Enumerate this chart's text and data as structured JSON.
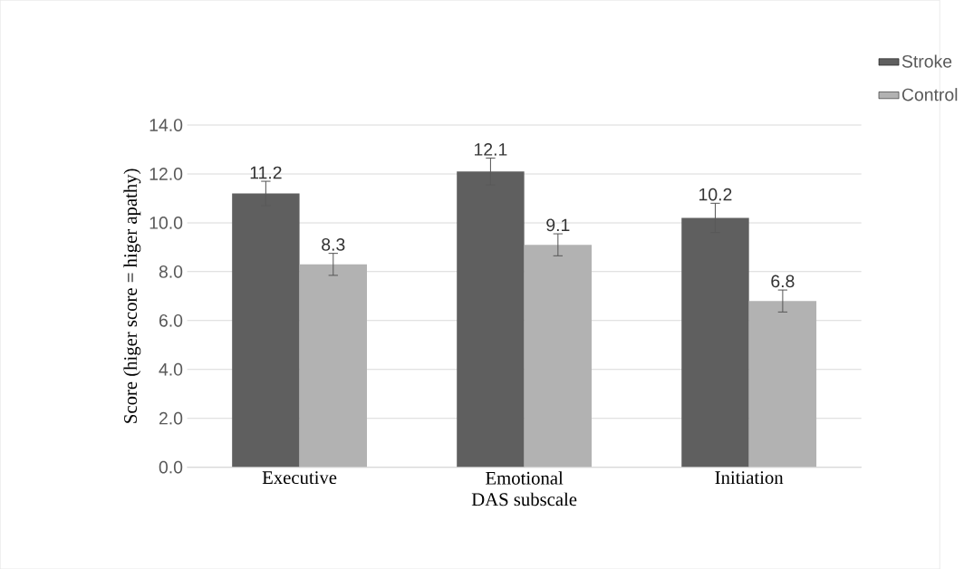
{
  "chart_data": {
    "type": "bar",
    "xlabel": "DAS subscale",
    "ylabel": "Score (higer score = higer apathy)",
    "categories": [
      "Executive",
      "Emotional",
      "Initiation"
    ],
    "series": [
      {
        "name": "Stroke",
        "color": "#5f5f5f",
        "values": [
          11.2,
          12.1,
          10.2
        ],
        "errors": [
          0.5,
          0.55,
          0.6
        ]
      },
      {
        "name": "Control",
        "color": "#b2b2b2",
        "values": [
          8.3,
          9.1,
          6.8
        ],
        "errors": [
          0.45,
          0.45,
          0.45
        ]
      }
    ],
    "ylim": [
      0,
      14
    ],
    "yticks": [
      {
        "value": 0,
        "label": "0.0"
      },
      {
        "value": 2,
        "label": "2.0"
      },
      {
        "value": 4,
        "label": "4.0"
      },
      {
        "value": 6,
        "label": "6.0"
      },
      {
        "value": 8,
        "label": "8.0"
      },
      {
        "value": 10,
        "label": "10.0"
      },
      {
        "value": 12,
        "label": "12.0"
      },
      {
        "value": 14,
        "label": "14.0"
      }
    ],
    "grid": "y",
    "legend": "top right",
    "data_labels": true
  }
}
